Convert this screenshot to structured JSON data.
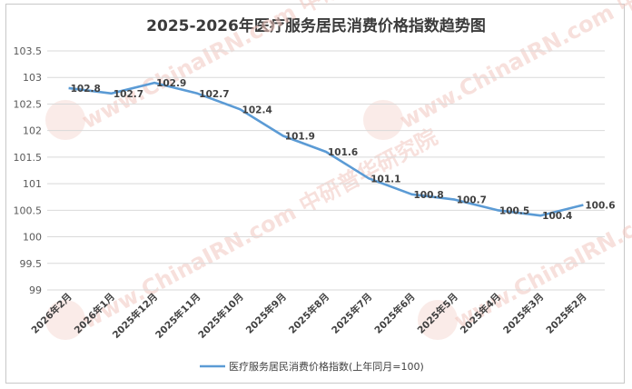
{
  "chart_data": {
    "type": "line",
    "title": "2025-2026年医疗服务居民消费价格指数趋势图",
    "categories": [
      "2026年2月",
      "2026年1月",
      "2025年12月",
      "2025年11月",
      "2025年10月",
      "2025年9月",
      "2025年8月",
      "2025年7月",
      "2025年6月",
      "2025年5月",
      "2025年4月",
      "2025年3月",
      "2025年2月"
    ],
    "series": [
      {
        "name": "医疗服务居民消费价格指数(上年同月=100)",
        "color": "#5b9bd5",
        "values": [
          102.8,
          102.7,
          102.9,
          102.7,
          102.4,
          101.9,
          101.6,
          101.1,
          100.8,
          100.7,
          100.5,
          100.4,
          100.6
        ]
      }
    ],
    "y_ticks": [
      "103.5",
      "103",
      "102.5",
      "102",
      "101.5",
      "101",
      "100.5",
      "100",
      "99.5",
      "99"
    ],
    "ylim": [
      99,
      103.5
    ],
    "grid": "horizontal",
    "legend": "bottom",
    "watermark": "www.ChinaIRN.com 中研普华研究院"
  }
}
